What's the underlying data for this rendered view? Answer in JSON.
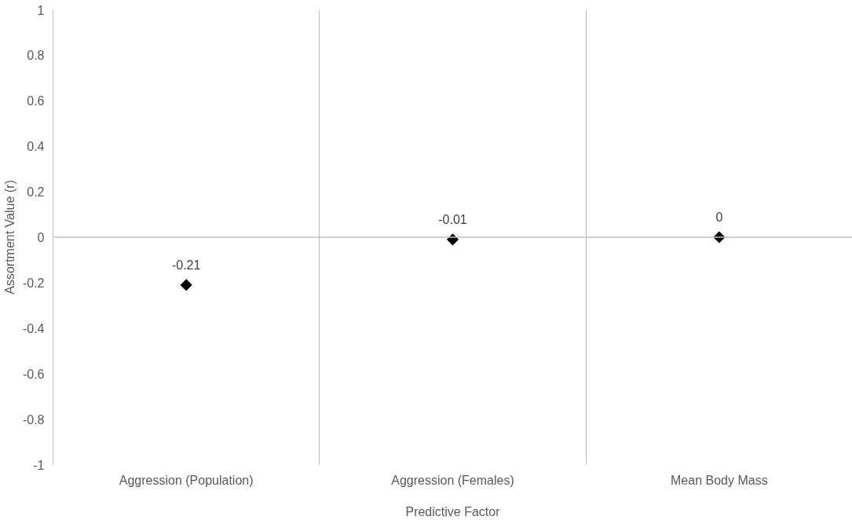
{
  "chart_data": {
    "type": "scatter",
    "xlabel": "Predictive Factor",
    "ylabel": "Assortment Value (r)",
    "categories": [
      "Aggression (Population)",
      "Aggression (Females)",
      "Mean Body Mass"
    ],
    "series": [
      {
        "color": "#000000",
        "values": [
          -0.21,
          -0.01,
          0
        ]
      }
    ],
    "marker": "diamond",
    "data_labels": true,
    "ylim": [
      -1,
      1
    ],
    "yticks": [
      -1,
      -0.8,
      -0.6,
      -0.4,
      -0.2,
      0,
      0.2,
      0.4,
      0.6,
      0.8,
      1
    ],
    "grid": "x",
    "ref_lines": [
      {
        "axis": "y",
        "value": 0,
        "color": "#bfbfbf"
      }
    ]
  }
}
